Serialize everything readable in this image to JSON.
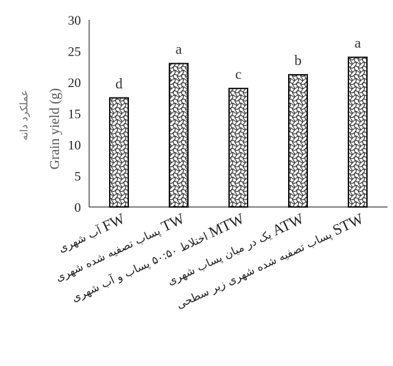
{
  "chart_data": {
    "type": "bar",
    "ylabel": "Grain yield (g)",
    "ylabel_fa": "عملکرد دانه",
    "ylim": [
      0,
      30
    ],
    "yticks": [
      0,
      5,
      10,
      15,
      20,
      25,
      30
    ],
    "grid": false,
    "bar_pattern": "crosshatch-wave",
    "bar_stroke": "#111111",
    "categories": [
      {
        "code": "FW",
        "label": "آب شهری"
      },
      {
        "code": "TW",
        "label": "پساب تصفیه شده شهری"
      },
      {
        "code": "MTW",
        "label": "اختلاط ۵۰:۵۰ پساب و آب شهری"
      },
      {
        "code": "ATW",
        "label": "یک در میان پساب شهری"
      },
      {
        "code": "STW",
        "label": "پساب تصفیه شده شهری زیر سطحی"
      }
    ],
    "values": [
      17.5,
      23.0,
      19.0,
      21.2,
      24.0
    ],
    "significance_letters": [
      "d",
      "a",
      "c",
      "b",
      "a"
    ]
  }
}
